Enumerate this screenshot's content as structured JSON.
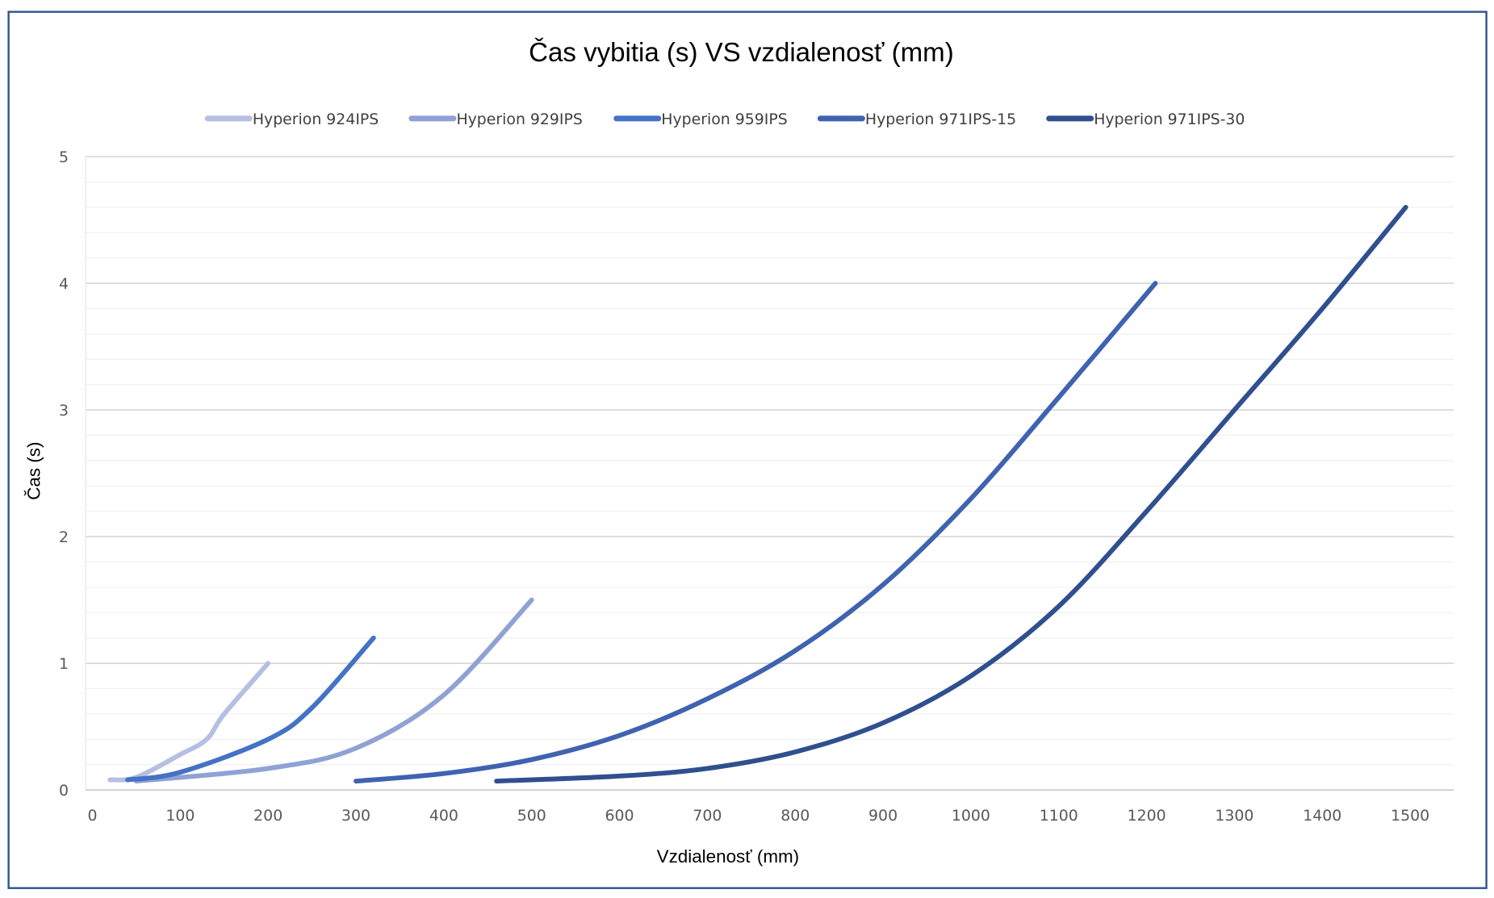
{
  "chart_data": {
    "type": "line",
    "title": "Čas vybitia (s) VS vzdialenosť (mm)",
    "xlabel": "Vzdialenosť (mm)",
    "ylabel": "Čas (s)",
    "xlim": [
      0,
      1500
    ],
    "ylim": [
      0,
      5
    ],
    "xticks": [
      0,
      100,
      200,
      300,
      400,
      500,
      600,
      700,
      800,
      900,
      1000,
      1100,
      1200,
      1300,
      1400,
      1500
    ],
    "yticks": [
      0,
      1,
      2,
      3,
      4,
      5
    ],
    "minor_grid_step": 0.2,
    "grid": true,
    "legend_position": "top",
    "series": [
      {
        "name": "Hyperion 924IPS",
        "color": "#b4bfe2",
        "x": [
          20,
          50,
          100,
          130,
          150,
          200
        ],
        "y": [
          0.08,
          0.1,
          0.28,
          0.4,
          0.6,
          1.0
        ]
      },
      {
        "name": "Hyperion 929IPS",
        "color": "#8fa2d4",
        "x": [
          50,
          200,
          300,
          400,
          500
        ],
        "y": [
          0.07,
          0.17,
          0.33,
          0.75,
          1.5
        ]
      },
      {
        "name": "Hyperion 959IPS",
        "color": "#4472c4",
        "x": [
          40,
          100,
          200,
          250,
          320
        ],
        "y": [
          0.08,
          0.14,
          0.4,
          0.65,
          1.2
        ]
      },
      {
        "name": "Hyperion 971IPS-15",
        "color": "#3f63b0",
        "x": [
          300,
          400,
          500,
          600,
          700,
          800,
          900,
          1000,
          1100,
          1210
        ],
        "y": [
          0.07,
          0.13,
          0.24,
          0.43,
          0.72,
          1.1,
          1.62,
          2.3,
          3.1,
          4.0
        ]
      },
      {
        "name": "Hyperion 971IPS-30",
        "color": "#2f4f8f",
        "x": [
          460,
          600,
          700,
          800,
          900,
          1000,
          1100,
          1200,
          1300,
          1400,
          1495
        ],
        "y": [
          0.07,
          0.11,
          0.17,
          0.3,
          0.53,
          0.9,
          1.45,
          2.2,
          3.0,
          3.8,
          4.6
        ]
      }
    ]
  }
}
